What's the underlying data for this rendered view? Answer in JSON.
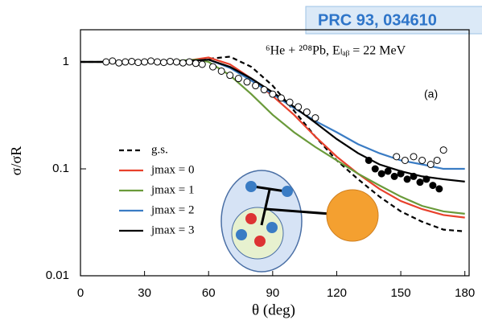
{
  "chart_data": {
    "type": "line",
    "yscale": "log",
    "title": "PRC 93, 034610",
    "annotations": [
      "⁶He + ²⁰⁸Pb, Eₗₐᵦ = 22 MeV",
      "(a)"
    ],
    "xlabel": "θ (deg)",
    "ylabel": "σ/σR",
    "xlim": [
      0,
      182
    ],
    "ylim": [
      0.01,
      2
    ],
    "xticks": [
      0,
      30,
      60,
      90,
      120,
      150,
      180
    ],
    "yticks": [
      0.01,
      0.1,
      1
    ],
    "series": [
      {
        "name": "g.s.",
        "color": "#000000",
        "dash": true,
        "x": [
          0,
          40,
          50,
          60,
          70,
          80,
          90,
          100,
          110,
          120,
          130,
          140,
          150,
          160,
          170,
          180
        ],
        "values": [
          1,
          1,
          1.01,
          1.07,
          1.12,
          0.9,
          0.6,
          0.35,
          0.2,
          0.12,
          0.08,
          0.055,
          0.04,
          0.032,
          0.027,
          0.026
        ]
      },
      {
        "name": "jmax = 0",
        "color": "#e8412c",
        "x": [
          0,
          40,
          50,
          60,
          70,
          80,
          90,
          100,
          110,
          120,
          130,
          140,
          150,
          160,
          170,
          180
        ],
        "values": [
          1,
          1,
          1.03,
          1.1,
          0.95,
          0.7,
          0.48,
          0.32,
          0.2,
          0.13,
          0.09,
          0.065,
          0.05,
          0.042,
          0.037,
          0.035
        ]
      },
      {
        "name": "jmax = 1",
        "color": "#6a9a3a",
        "x": [
          0,
          40,
          50,
          55,
          60,
          70,
          80,
          90,
          100,
          110,
          120,
          130,
          140,
          150,
          160,
          170,
          180
        ],
        "values": [
          1,
          1,
          1.04,
          1.05,
          1.0,
          0.75,
          0.5,
          0.32,
          0.22,
          0.16,
          0.12,
          0.09,
          0.07,
          0.055,
          0.045,
          0.04,
          0.038
        ]
      },
      {
        "name": "jmax = 2",
        "color": "#3a7cc4",
        "x": [
          0,
          40,
          50,
          60,
          70,
          80,
          90,
          100,
          110,
          120,
          130,
          140,
          150,
          160,
          170,
          180
        ],
        "values": [
          1,
          1,
          1.02,
          1.05,
          0.88,
          0.67,
          0.5,
          0.37,
          0.28,
          0.22,
          0.17,
          0.14,
          0.12,
          0.11,
          0.1,
          0.1
        ]
      },
      {
        "name": "jmax = 3",
        "color": "#000000",
        "x": [
          0,
          40,
          50,
          60,
          70,
          80,
          90,
          100,
          110,
          120,
          130,
          140,
          150,
          160,
          170,
          180
        ],
        "values": [
          1,
          1,
          1.02,
          1.05,
          0.9,
          0.7,
          0.52,
          0.38,
          0.27,
          0.19,
          0.14,
          0.11,
          0.095,
          0.085,
          0.08,
          0.076
        ]
      }
    ],
    "points": [
      {
        "filled": false,
        "x": [
          12,
          15,
          18,
          21,
          24,
          27,
          30,
          33,
          36,
          39,
          42,
          45,
          48,
          51,
          54,
          57,
          62,
          66,
          70,
          74,
          78,
          82,
          86,
          90,
          94,
          98,
          102,
          106,
          110,
          148,
          152,
          156,
          160,
          164,
          167,
          170
        ],
        "values": [
          1,
          1.02,
          0.98,
          1,
          1.01,
          0.99,
          1,
          1.02,
          1,
          0.99,
          1.01,
          1,
          0.98,
          1,
          0.97,
          0.95,
          0.9,
          0.82,
          0.75,
          0.7,
          0.65,
          0.6,
          0.55,
          0.5,
          0.46,
          0.42,
          0.38,
          0.34,
          0.3,
          0.13,
          0.12,
          0.13,
          0.12,
          0.11,
          0.12,
          0.15
        ]
      },
      {
        "filled": true,
        "x": [
          135,
          138,
          141,
          144,
          147,
          150,
          153,
          156,
          159,
          162,
          165,
          168
        ],
        "values": [
          0.12,
          0.1,
          0.09,
          0.095,
          0.085,
          0.09,
          0.08,
          0.085,
          0.075,
          0.08,
          0.07,
          0.065
        ]
      }
    ]
  }
}
